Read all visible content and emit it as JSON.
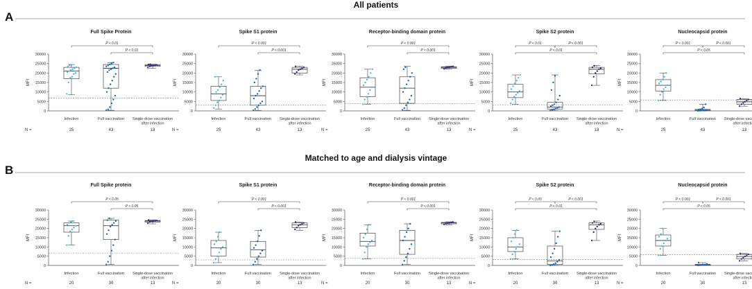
{
  "figure": {
    "sections": [
      {
        "letter": "A",
        "title": "All patients",
        "n_counts": [
          "25",
          "43",
          "13"
        ]
      },
      {
        "letter": "B",
        "title": "Matched to age and dialysis vintage",
        "n_counts": [
          "20",
          "30",
          "13"
        ]
      }
    ],
    "n_label": "N =",
    "y_axis_label": "MFI",
    "colors": {
      "infection": "#4bb5e3",
      "full_vaccination": "#1565c0",
      "single_dose": "#2d2a8c",
      "box": "#444444",
      "cutoff": "#777777"
    }
  },
  "chart_data": [
    {
      "panel": "A1",
      "type": "box",
      "title": "Full Spike Protein",
      "categories": [
        "Infection",
        "Full vaccination",
        "Single-dose vaccination after infection"
      ],
      "ylabel": "MFI",
      "ylim": [
        0,
        30000
      ],
      "yticks": [
        0,
        5000,
        10000,
        15000,
        20000,
        25000,
        30000
      ],
      "cutoff": 6700,
      "boxes": [
        {
          "q1": 17000,
          "median": 21000,
          "q3": 23000,
          "whisker_low": 8500,
          "whisker_high": 24500
        },
        {
          "q1": 12000,
          "median": 22500,
          "q3": 24500,
          "whisker_low": 300,
          "whisker_high": 25500
        },
        {
          "q1": 23500,
          "median": 24000,
          "q3": 24300,
          "whisker_low": 22500,
          "whisker_high": 24700
        }
      ],
      "points": [
        [
          9000,
          15000,
          17500,
          18000,
          19500,
          20000,
          20500,
          21000,
          21500,
          22000,
          22500,
          23000,
          23500,
          24000,
          24200
        ],
        [
          300,
          800,
          2000,
          4000,
          6000,
          8000,
          10000,
          12000,
          14000,
          16000,
          18000,
          19500,
          20500,
          21500,
          22000,
          22500,
          23000,
          23500,
          24000,
          24500,
          25000,
          25500
        ],
        [
          22800,
          23500,
          23800,
          24000,
          24100,
          24300,
          24500,
          24600
        ]
      ],
      "comparisons": [
        {
          "from": 0,
          "to": 2,
          "label": "P < 0.01",
          "level": 2
        },
        {
          "from": 1,
          "to": 2,
          "label": "P < 0.01",
          "level": 1
        }
      ]
    },
    {
      "panel": "A2",
      "type": "box",
      "title": "Spike S1 protein",
      "categories": [
        "Infection",
        "Full vaccination",
        "Single-dose vaccination after infection"
      ],
      "ylabel": "MFI",
      "ylim": [
        0,
        30000
      ],
      "yticks": [
        0,
        5000,
        10000,
        15000,
        20000,
        25000,
        30000
      ],
      "cutoff": 3000,
      "boxes": [
        {
          "q1": 5500,
          "median": 9000,
          "q3": 13000,
          "whisker_low": 1000,
          "whisker_high": 18000
        },
        {
          "q1": 3000,
          "median": 8000,
          "q3": 13000,
          "whisker_low": 200,
          "whisker_high": 21500
        },
        {
          "q1": 20000,
          "median": 22000,
          "q3": 23000,
          "whisker_low": 19000,
          "whisker_high": 23500
        }
      ],
      "points": [
        [
          1500,
          3000,
          4500,
          5500,
          7000,
          8500,
          9000,
          10000,
          11000,
          12500,
          14000,
          16000,
          18000
        ],
        [
          300,
          1000,
          2000,
          3000,
          4000,
          5000,
          6500,
          8000,
          9000,
          10500,
          12000,
          13000,
          15000,
          17000,
          19500,
          21500
        ],
        [
          19500,
          20500,
          21500,
          22000,
          22500,
          23000,
          23500
        ]
      ],
      "comparisons": [
        {
          "from": 0,
          "to": 2,
          "label": "P < 0.001",
          "level": 2
        },
        {
          "from": 1,
          "to": 2,
          "label": "P < 0.001",
          "level": 1
        }
      ]
    },
    {
      "panel": "A3",
      "type": "box",
      "title": "Receptor-binding domain protein",
      "categories": [
        "Infection",
        "Full vaccination",
        "Single-dose vaccination after infection"
      ],
      "ylabel": "MFI",
      "ylim": [
        0,
        30000
      ],
      "yticks": [
        0,
        5000,
        10000,
        15000,
        20000,
        25000,
        30000
      ],
      "cutoff": 3800,
      "boxes": [
        {
          "q1": 7500,
          "median": 12500,
          "q3": 17500,
          "whisker_low": 3500,
          "whisker_high": 22000
        },
        {
          "q1": 4000,
          "median": 12000,
          "q3": 18000,
          "whisker_low": 300,
          "whisker_high": 23500
        },
        {
          "q1": 22500,
          "median": 23000,
          "q3": 23300,
          "whisker_low": 22000,
          "whisker_high": 23600
        }
      ],
      "points": [
        [
          3500,
          6000,
          7500,
          9000,
          11000,
          12500,
          13500,
          15000,
          16500,
          18000,
          20000,
          22000
        ],
        [
          500,
          1500,
          3000,
          4500,
          6000,
          8000,
          10000,
          12000,
          14000,
          16000,
          18000,
          20000,
          22000,
          23000
        ],
        [
          22200,
          22600,
          22900,
          23100,
          23300,
          23500
        ]
      ],
      "comparisons": [
        {
          "from": 0,
          "to": 2,
          "label": "P < 0.001",
          "level": 2
        },
        {
          "from": 1,
          "to": 2,
          "label": "P < 0.001",
          "level": 1
        }
      ]
    },
    {
      "panel": "A4",
      "type": "box",
      "title": "Spike S2 protein",
      "categories": [
        "Infection",
        "Full vaccination",
        "Single-dose vaccination after infection"
      ],
      "ylabel": "MFI",
      "ylim": [
        0,
        30000
      ],
      "yticks": [
        0,
        5000,
        10000,
        15000,
        20000,
        25000,
        30000
      ],
      "cutoff": 3200,
      "boxes": [
        {
          "q1": 7000,
          "median": 10000,
          "q3": 14000,
          "whisker_low": 3500,
          "whisker_high": 19000
        },
        {
          "q1": 1000,
          "median": 2000,
          "q3": 4500,
          "whisker_low": 100,
          "whisker_high": 19000
        },
        {
          "q1": 19500,
          "median": 22000,
          "q3": 23000,
          "whisker_low": 13500,
          "whisker_high": 24000
        }
      ],
      "points": [
        [
          4000,
          6000,
          7500,
          8500,
          9500,
          10500,
          11500,
          13000,
          14500,
          16000,
          17500,
          19000
        ],
        [
          200,
          500,
          800,
          1200,
          1600,
          2000,
          2500,
          3000,
          3500,
          4500,
          6000,
          8000,
          11000,
          15000,
          18500
        ],
        [
          13500,
          18000,
          20000,
          21000,
          22000,
          22500,
          23000,
          23800
        ]
      ],
      "comparisons": [
        {
          "from": 0,
          "to": 1,
          "label": "P < 0.01",
          "level": 2
        },
        {
          "from": 1,
          "to": 2,
          "label": "P < 0.001",
          "level": 2
        },
        {
          "from": 0,
          "to": 2,
          "label": "P < 0.01",
          "level": 1
        }
      ]
    },
    {
      "panel": "A5",
      "type": "box",
      "title": "Nucleocapsid protein",
      "categories": [
        "Infection",
        "Full vaccination",
        "Single-dose vaccination after infection"
      ],
      "ylabel": "MFI",
      "ylim": [
        0,
        30000
      ],
      "yticks": [
        0,
        5000,
        10000,
        15000,
        20000,
        25000,
        30000
      ],
      "cutoff": 5800,
      "boxes": [
        {
          "q1": 10500,
          "median": 13500,
          "q3": 16500,
          "whisker_low": 5500,
          "whisker_high": 20000
        },
        {
          "q1": 200,
          "median": 400,
          "q3": 800,
          "whisker_low": 0,
          "whisker_high": 3500
        },
        {
          "q1": 3500,
          "median": 4800,
          "q3": 6000,
          "whisker_low": 2500,
          "whisker_high": 6500
        }
      ],
      "points": [
        [
          5500,
          8500,
          10000,
          11500,
          12500,
          13500,
          14500,
          15500,
          16500,
          18000,
          20000
        ],
        [
          0,
          100,
          200,
          300,
          400,
          500,
          700,
          900,
          1200,
          1800,
          3500
        ],
        [
          2500,
          3500,
          4200,
          4800,
          5500,
          6000,
          6500
        ]
      ],
      "comparisons": [
        {
          "from": 0,
          "to": 1,
          "label": "P < 0.001",
          "level": 2
        },
        {
          "from": 1,
          "to": 2,
          "label": "P < 0.001",
          "level": 2
        },
        {
          "from": 0,
          "to": 2,
          "label": "P < 0.05",
          "level": 1
        }
      ]
    },
    {
      "panel": "B1",
      "type": "box",
      "title": "Full Spike protein",
      "categories": [
        "Infection",
        "Full vaccination",
        "Single-dose vaccination after infection"
      ],
      "ylabel": "MFI",
      "ylim": [
        0,
        30000
      ],
      "yticks": [
        0,
        5000,
        10000,
        15000,
        20000,
        25000,
        30000
      ],
      "cutoff": 6700,
      "boxes": [
        {
          "q1": 18000,
          "median": 21500,
          "q3": 23000,
          "whisker_low": 11000,
          "whisker_high": 24000
        },
        {
          "q1": 14000,
          "median": 21500,
          "q3": 24500,
          "whisker_low": 500,
          "whisker_high": 25500
        },
        {
          "q1": 23500,
          "median": 24000,
          "q3": 24300,
          "whisker_low": 22500,
          "whisker_high": 24700
        }
      ],
      "points": [
        [
          11000,
          16000,
          18500,
          19500,
          20500,
          21500,
          22000,
          23000,
          23500,
          24000
        ],
        [
          500,
          2000,
          5000,
          8000,
          11000,
          14000,
          17000,
          19000,
          21000,
          22000,
          23000,
          24000,
          24500,
          25500
        ],
        [
          22800,
          23500,
          23800,
          24000,
          24100,
          24300,
          24600
        ]
      ],
      "comparisons": [
        {
          "from": 0,
          "to": 2,
          "label": "P < 0.05",
          "level": 2
        },
        {
          "from": 1,
          "to": 2,
          "label": "P < 0.05",
          "level": 1
        }
      ]
    },
    {
      "panel": "B2",
      "type": "box",
      "title": "Spike S1 protein",
      "categories": [
        "Infection",
        "Full vaccination",
        "Single-dose vaccination after infection"
      ],
      "ylabel": "MFI",
      "ylim": [
        0,
        30000
      ],
      "yticks": [
        0,
        5000,
        10000,
        15000,
        20000,
        25000,
        30000
      ],
      "cutoff": 3000,
      "boxes": [
        {
          "q1": 5000,
          "median": 9500,
          "q3": 13500,
          "whisker_low": 1500,
          "whisker_high": 18000
        },
        {
          "q1": 4500,
          "median": 8500,
          "q3": 13000,
          "whisker_low": 500,
          "whisker_high": 19000
        },
        {
          "q1": 20500,
          "median": 22000,
          "q3": 23000,
          "whisker_low": 19000,
          "whisker_high": 23500
        }
      ],
      "points": [
        [
          1500,
          3500,
          5000,
          7000,
          9000,
          10000,
          11500,
          13000,
          15500,
          18000
        ],
        [
          500,
          2000,
          3500,
          5000,
          6500,
          8000,
          9500,
          11000,
          13000,
          16000,
          19000
        ],
        [
          19500,
          20500,
          21500,
          22000,
          22500,
          23000,
          23500
        ]
      ],
      "comparisons": [
        {
          "from": 0,
          "to": 2,
          "label": "P < 0.001",
          "level": 2
        },
        {
          "from": 1,
          "to": 2,
          "label": "P < 0.001",
          "level": 1
        }
      ]
    },
    {
      "panel": "B3",
      "type": "box",
      "title": "Receptor-binding domain protein",
      "categories": [
        "Infection",
        "Full vaccination",
        "Single-dose vaccination after infection"
      ],
      "ylabel": "MFI",
      "ylim": [
        0,
        30000
      ],
      "yticks": [
        0,
        5000,
        10000,
        15000,
        20000,
        25000,
        30000
      ],
      "cutoff": 3800,
      "boxes": [
        {
          "q1": 10500,
          "median": 13000,
          "q3": 17500,
          "whisker_low": 3500,
          "whisker_high": 22000
        },
        {
          "q1": 6000,
          "median": 13500,
          "q3": 19000,
          "whisker_low": 500,
          "whisker_high": 22500
        },
        {
          "q1": 22500,
          "median": 23000,
          "q3": 23300,
          "whisker_low": 22000,
          "whisker_high": 23600
        }
      ],
      "points": [
        [
          3500,
          7000,
          10000,
          11500,
          12500,
          13500,
          15000,
          17000,
          19500,
          22000
        ],
        [
          500,
          2500,
          4500,
          6500,
          9000,
          11500,
          13500,
          15500,
          18000,
          20000,
          22500
        ],
        [
          22200,
          22600,
          22900,
          23100,
          23300,
          23500
        ]
      ],
      "comparisons": [
        {
          "from": 0,
          "to": 2,
          "label": "P < 0.001",
          "level": 2
        },
        {
          "from": 1,
          "to": 2,
          "label": "P < 0.001",
          "level": 1
        }
      ]
    },
    {
      "panel": "B4",
      "type": "box",
      "title": "Spike S2 protein",
      "categories": [
        "Infection",
        "Full vaccination",
        "Single-dose vaccination after infection"
      ],
      "ylabel": "MFI",
      "ylim": [
        0,
        30000
      ],
      "yticks": [
        0,
        5000,
        10000,
        15000,
        20000,
        25000,
        30000
      ],
      "cutoff": 3200,
      "boxes": [
        {
          "q1": 7500,
          "median": 10000,
          "q3": 15000,
          "whisker_low": 3500,
          "whisker_high": 19000
        },
        {
          "q1": 500,
          "median": 2500,
          "q3": 10500,
          "whisker_low": 0,
          "whisker_high": 18500
        },
        {
          "q1": 19500,
          "median": 22000,
          "q3": 23000,
          "whisker_low": 13500,
          "whisker_high": 24000
        }
      ],
      "points": [
        [
          3500,
          6000,
          7500,
          9000,
          10000,
          11500,
          13000,
          15000,
          17000,
          19000
        ],
        [
          0,
          300,
          700,
          1200,
          2000,
          3000,
          4500,
          6500,
          9000,
          12000,
          15500,
          18500
        ],
        [
          13500,
          18000,
          20000,
          21000,
          22000,
          22500,
          23000,
          23800
        ]
      ],
      "comparisons": [
        {
          "from": 0,
          "to": 1,
          "label": "P < 0.05",
          "level": 2
        },
        {
          "from": 1,
          "to": 2,
          "label": "P < 0.001",
          "level": 2
        },
        {
          "from": 0,
          "to": 2,
          "label": "P < 0.01",
          "level": 1
        }
      ]
    },
    {
      "panel": "B5",
      "type": "box",
      "title": "Nucleocapsid protein",
      "categories": [
        "Infection",
        "Full vaccination",
        "Single-dose vaccination after infection"
      ],
      "ylabel": "MFI",
      "ylim": [
        0,
        30000
      ],
      "yticks": [
        0,
        5000,
        10000,
        15000,
        20000,
        25000,
        30000
      ],
      "cutoff": 5800,
      "boxes": [
        {
          "q1": 10500,
          "median": 13500,
          "q3": 16500,
          "whisker_low": 5500,
          "whisker_high": 20000
        },
        {
          "q1": 100,
          "median": 300,
          "q3": 600,
          "whisker_low": 0,
          "whisker_high": 1500
        },
        {
          "q1": 3500,
          "median": 4800,
          "q3": 6000,
          "whisker_low": 2500,
          "whisker_high": 6500
        }
      ],
      "points": [
        [
          5500,
          9000,
          10500,
          12000,
          13500,
          14500,
          15500,
          17000,
          20000
        ],
        [
          0,
          100,
          200,
          300,
          500,
          800,
          1500
        ],
        [
          2500,
          3500,
          4200,
          4800,
          5500,
          6000,
          6500
        ]
      ],
      "comparisons": [
        {
          "from": 0,
          "to": 1,
          "label": "P < 0.001",
          "level": 2
        },
        {
          "from": 1,
          "to": 2,
          "label": "P < 0.001",
          "level": 2
        },
        {
          "from": 0,
          "to": 2,
          "label": "P < 0.05",
          "level": 1
        }
      ]
    }
  ]
}
